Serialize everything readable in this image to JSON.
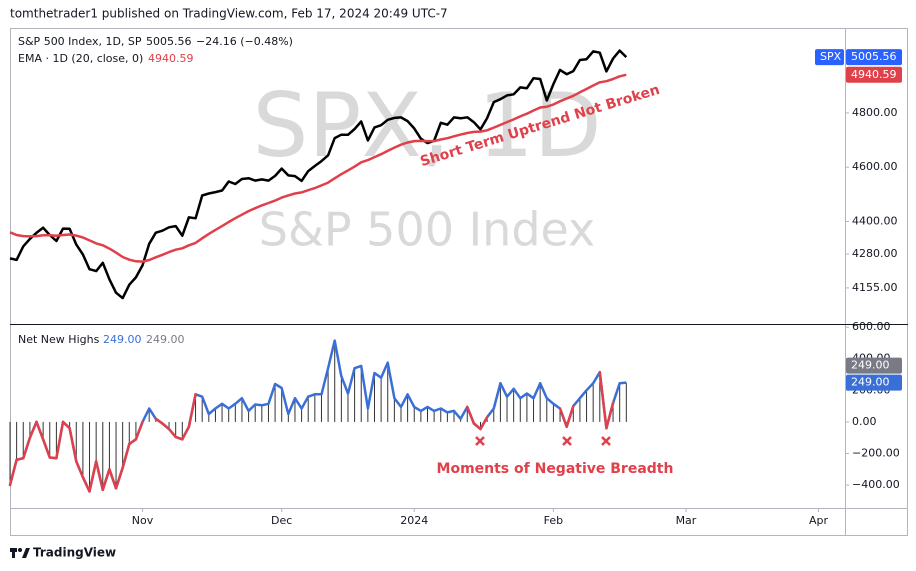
{
  "header": "tomthetrader1 published on TradingView.com, Feb 17, 2024 20:49 UTC-7",
  "footer": "TradingView",
  "watermark": {
    "symbol": "SPX, 1D",
    "name": "S&P 500 Index"
  },
  "chart_data": [
    {
      "type": "line",
      "title": "S&P 500 Index, 1D, SP",
      "change": "−24.16 (−0.48%)",
      "symbol": "SPX",
      "annotation": "Short Term Uptrend Not Broken",
      "xlim": [
        0,
        126
      ],
      "ylim": [
        4022,
        5113
      ],
      "yticks": [
        {
          "value": 4155,
          "label": "4155.00"
        },
        {
          "value": 4280,
          "label": "4280.00"
        },
        {
          "value": 4400,
          "label": "4400.00"
        },
        {
          "value": 4600,
          "label": "4600.00"
        },
        {
          "value": 4800,
          "label": "4800.00"
        }
      ],
      "grid": false,
      "series": [
        {
          "name": "S&P 500 Index",
          "color": "#000000",
          "values": [
            4263.75,
            4258.19,
            4308.5,
            4335.66,
            4358.24,
            4376.95,
            4349.61,
            4327.78,
            4373.63,
            4373.2,
            4314.6,
            4278,
            4224.16,
            4217.04,
            4247.68,
            4186.77,
            4137.23,
            4117.37,
            4166.82,
            4193.8,
            4237.86,
            4317.78,
            4358.34,
            4365.98,
            4378.38,
            4382.78,
            4347.35,
            4415.24,
            4411.55,
            4495.7,
            4502.88,
            4508.24,
            4514.02,
            4547.38,
            4538.19,
            4556.62,
            4559.34,
            4550.43,
            4554.89,
            4550.58,
            4567.8,
            4594.63,
            4569.78,
            4567.18,
            4549.34,
            4585.59,
            4604.37,
            4622.44,
            4643.7,
            4707.09,
            4719.55,
            4719.19,
            4740.56,
            4768.37,
            4698.35,
            4746.75,
            4754.63,
            4774.75,
            4781.58,
            4783.35,
            4769.83,
            4742.83,
            4704.81,
            4688.68,
            4697.24,
            4763.54,
            4756.5,
            4783.45,
            4780.24,
            4783.83,
            4765.98,
            4739.21,
            4780.94,
            4839.81,
            4850.43,
            4864.6,
            4868.55,
            4894.16,
            4890.97,
            4927.93,
            4924.97,
            4845.65,
            4906.19,
            4958.61,
            4942.81,
            4954.23,
            4995.06,
            4997.91,
            5026.61,
            5021.84,
            4953.17,
            5000.62,
            5029.73,
            5005.56
          ]
        },
        {
          "name": "EMA · 1D (20, close, 0)",
          "color": "#e0404a",
          "values": [
            4360,
            4350,
            4346,
            4345,
            4346,
            4349,
            4349,
            4347,
            4350,
            4352,
            4348,
            4341,
            4330,
            4319,
            4312,
            4300,
            4285,
            4269,
            4259,
            4253,
            4252,
            4258,
            4268,
            4277,
            4287,
            4296,
            4301,
            4312,
            4321,
            4338,
            4354,
            4369,
            4383,
            4398,
            4412,
            4425,
            4438,
            4449,
            4459,
            4468,
            4477,
            4488,
            4496,
            4503,
            4507,
            4515,
            4523,
            4533,
            4543,
            4559,
            4574,
            4588,
            4602,
            4618,
            4626,
            4637,
            4648,
            4660,
            4672,
            4683,
            4691,
            4696,
            4697,
            4696,
            4696,
            4702,
            4707,
            4714,
            4720,
            4726,
            4730,
            4731,
            4736,
            4746,
            4756,
            4766,
            4776,
            4787,
            4797,
            4809,
            4820,
            4823,
            4831,
            4843,
            4853,
            4863,
            4876,
            4888,
            4901,
            4913,
            4917,
            4925,
            4935,
            4940.59
          ]
        }
      ]
    },
    {
      "type": "line",
      "annotation": "Moments of Negative Breadth",
      "xlim": [
        0,
        126
      ],
      "xticks": [
        {
          "value": 20,
          "label": "Nov"
        },
        {
          "value": 41,
          "label": "Dec"
        },
        {
          "value": 61,
          "label": "2024"
        },
        {
          "value": 82,
          "label": "Feb"
        },
        {
          "value": 102,
          "label": "Mar"
        },
        {
          "value": 122,
          "label": "Apr"
        }
      ],
      "ylim": [
        -545,
        620
      ],
      "yticks": [
        {
          "value": 600,
          "label": "600.00"
        },
        {
          "value": 400,
          "label": "400.00"
        },
        {
          "value": 200,
          "label": "200.00"
        },
        {
          "value": 0,
          "label": "0.00"
        },
        {
          "value": -200,
          "label": "−200.00"
        },
        {
          "value": -400,
          "label": "−400.00"
        }
      ],
      "grid": false,
      "series": [
        {
          "name": "Net New Highs",
          "color": "#3a6fd8",
          "negative_color": "#e0404a",
          "histogram_color": "#333333",
          "last_label": "249.00",
          "values": [
            -400,
            -240,
            -230,
            -100,
            0,
            -110,
            -225,
            -230,
            0,
            -40,
            -250,
            -350,
            -440,
            -250,
            -430,
            -300,
            -420,
            -290,
            -140,
            -110,
            0,
            85,
            20,
            -10,
            -45,
            -95,
            -110,
            -30,
            175,
            160,
            50,
            85,
            115,
            85,
            115,
            150,
            70,
            110,
            105,
            115,
            240,
            215,
            50,
            150,
            85,
            160,
            175,
            175,
            340,
            515,
            290,
            180,
            340,
            355,
            85,
            310,
            280,
            375,
            150,
            95,
            175,
            95,
            70,
            95,
            70,
            85,
            60,
            70,
            20,
            95,
            -10,
            -45,
            30,
            85,
            245,
            160,
            210,
            150,
            180,
            150,
            245,
            150,
            115,
            85,
            -30,
            100,
            150,
            200,
            245,
            315,
            -40,
            120,
            245,
            249
          ]
        }
      ]
    }
  ]
}
